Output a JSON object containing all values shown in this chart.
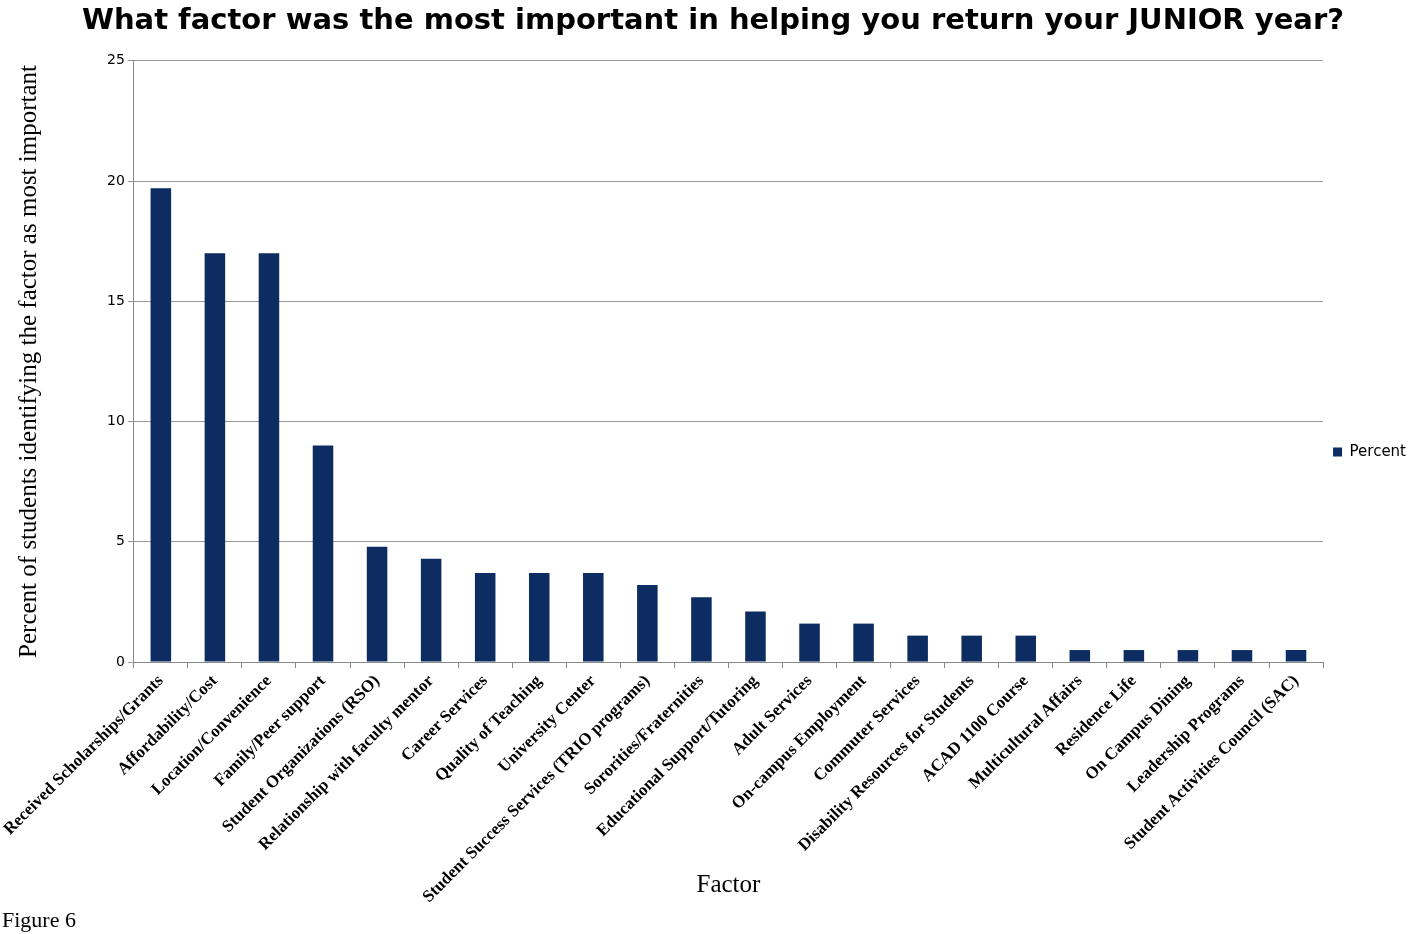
{
  "chart_data": {
    "type": "bar",
    "title": "What factor was the most important in helping you return your JUNIOR year?",
    "xlabel": "Factor",
    "ylabel": "Percent of students identifying the factor as most important",
    "categories": [
      "Received Scholarships/Grants",
      "Affordability/Cost",
      "Location/Convenience",
      "Family/Peer support",
      "Student Organizations (RSO)",
      "Relationship with faculty mentor",
      "Career Services",
      "Quality of Teaching",
      "University Center",
      "Student Success Services (TRIO programs)",
      "Sororities/Fraternities",
      "Educational Support/Tutoring",
      "Adult Services",
      "On-campus Employment",
      "Commuter Services",
      "Disability Resources for Students",
      "ACAD 1100 Course",
      "Multicultural Affairs",
      "Residence Life",
      "On Campus Dining",
      "Leadership Programs",
      "Student Activities Council (SAC)"
    ],
    "series": [
      {
        "name": "Percent",
        "color": "#0d2d62",
        "values": [
          19.7,
          17.0,
          17.0,
          9.0,
          4.8,
          4.3,
          3.7,
          3.7,
          3.7,
          3.2,
          2.7,
          2.1,
          1.6,
          1.6,
          1.1,
          1.1,
          1.1,
          0.5,
          0.5,
          0.5,
          0.5,
          0.5
        ]
      }
    ],
    "ylim": [
      0,
      25
    ],
    "yticks": [
      0,
      5,
      10,
      15,
      20,
      25
    ],
    "grid": "y",
    "legend": "right",
    "annotations": [
      "Figure 6"
    ]
  }
}
